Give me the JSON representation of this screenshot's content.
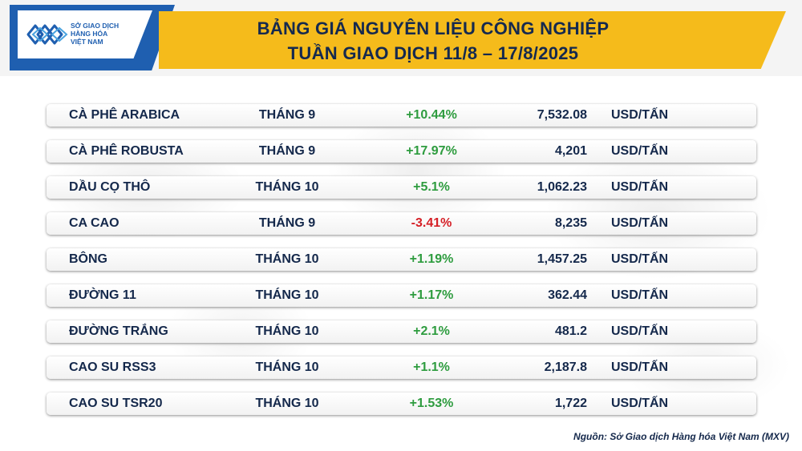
{
  "logo": {
    "lines": [
      "SỞ GIAO DỊCH",
      "HÀNG HÓA",
      "VIỆT NAM"
    ]
  },
  "title": {
    "line1": "BẢNG GIÁ NGUYÊN LIỆU CÔNG NGHIỆP",
    "line2": "TUẦN GIAO DỊCH 11/8 – 17/8/2025"
  },
  "colors": {
    "banner": "#f5bb1b",
    "logo_blue": "#1f5fb0",
    "text_navy": "#14284b",
    "positive": "#2e9c3f",
    "negative": "#d51f26"
  },
  "rows": [
    {
      "name": "CÀ PHÊ ARABICA",
      "month": "THÁNG 9",
      "change": "+10.44%",
      "price": "7,532.08",
      "unit": "USD/TẤN"
    },
    {
      "name": "CÀ PHÊ ROBUSTA",
      "month": "THÁNG 9",
      "change": "+17.97%",
      "price": "4,201",
      "unit": "USD/TẤN"
    },
    {
      "name": "DẦU CỌ THÔ",
      "month": "THÁNG 10",
      "change": "+5.1%",
      "price": "1,062.23",
      "unit": "USD/TẤN"
    },
    {
      "name": "CA CAO",
      "month": "THÁNG 9",
      "change": "-3.41%",
      "price": "8,235",
      "unit": "USD/TẤN"
    },
    {
      "name": "BÔNG",
      "month": "THÁNG 10",
      "change": "+1.19%",
      "price": "1,457.25",
      "unit": "USD/TẤN"
    },
    {
      "name": "ĐƯỜNG 11",
      "month": "THÁNG 10",
      "change": "+1.17%",
      "price": "362.44",
      "unit": "USD/TẤN"
    },
    {
      "name": "ĐƯỜNG TRẮNG",
      "month": "THÁNG 10",
      "change": "+2.1%",
      "price": "481.2",
      "unit": "USD/TẤN"
    },
    {
      "name": "CAO SU RSS3",
      "month": "THÁNG 10",
      "change": "+1.1%",
      "price": "2,187.8",
      "unit": "USD/TẤN"
    },
    {
      "name": "CAO SU TSR20",
      "month": "THÁNG 10",
      "change": "+1.53%",
      "price": "1,722",
      "unit": "USD/TẤN"
    }
  ],
  "source": "Nguồn: Sở Giao dịch Hàng hóa Việt Nam (MXV)"
}
